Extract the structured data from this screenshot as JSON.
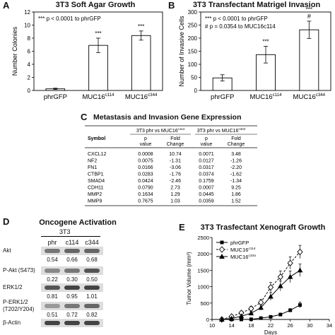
{
  "panels": {
    "a": {
      "letter": "A",
      "title": "3T3 Soft Agar Growth",
      "note": "*** p < 0.0001 to phrGFP",
      "chart_data": {
        "type": "bar",
        "categories": [
          "phrGFP",
          "MUC16c114",
          "MUC16c344"
        ],
        "category_labels": [
          {
            "main": "phrGFP",
            "sup": ""
          },
          {
            "main": "MUC16",
            "sup": "c114"
          },
          {
            "main": "MUC16",
            "sup": "c344"
          }
        ],
        "values": [
          0.25,
          6.9,
          8.4
        ],
        "errors": [
          0.1,
          1.1,
          0.7
        ],
        "annotations": [
          "",
          "***",
          "***"
        ],
        "ylabel": "Number Colonies",
        "ylim": [
          0,
          12
        ],
        "yticks": [
          "0",
          "2",
          "4",
          "6",
          "8",
          "10",
          "12"
        ]
      }
    },
    "b": {
      "letter": "B",
      "title": "3T3 Transfectant Matrigel Invasion",
      "note1": "*** p < 0.0001 to phrGFP",
      "note2": "# p = 0.0354 to MUC16c114",
      "chart_data": {
        "type": "bar",
        "categories": [
          "phrGFP",
          "MUC16c114",
          "MUC16c344"
        ],
        "category_labels": [
          {
            "main": "phrGFP",
            "sup": ""
          },
          {
            "main": "MUC16",
            "sup": "c114"
          },
          {
            "main": "MUC16",
            "sup": "c344"
          }
        ],
        "values": [
          48,
          137,
          232
        ],
        "errors": [
          12,
          32,
          33
        ],
        "annotations": [
          "",
          "***",
          "***\n#"
        ],
        "ylabel": "Number of Invasive Cells",
        "ylim": [
          0,
          300
        ],
        "yticks": [
          "0",
          "50",
          "100",
          "150",
          "200",
          "250",
          "300"
        ]
      }
    },
    "c": {
      "letter": "C",
      "title": "Metastasis and Invasion Gene Expression",
      "chart_data": {
        "type": "table",
        "group_headers": [
          "3T3 phr vs MUC16c114",
          "3T3 phr vs MUC16c344"
        ],
        "columns": [
          "Symbol",
          "p value",
          "Fold Change",
          "p value",
          "Fold Change"
        ],
        "rows": [
          [
            "CXCL12",
            "0.0008",
            "10.74",
            "0.0071",
            "3.48"
          ],
          [
            "NF2",
            "0.0075",
            "-1.31",
            "0.0127",
            "-1.26"
          ],
          [
            "FN1",
            "0.0166",
            "-3.06",
            "0.0317",
            "-2.20"
          ],
          [
            "CTBP1",
            "0.0283",
            "-1.76",
            "0.0374",
            "-1.62"
          ],
          [
            "SMAD4",
            "0.0424",
            "-2.46",
            "0.1759",
            "-1.34"
          ],
          [
            "CDH11",
            "0.0790",
            "2.73",
            "0.0007",
            "9.25"
          ],
          [
            "MMP2",
            "0.1634",
            "1.29",
            "0.0445",
            "1.86"
          ],
          [
            "MMP9",
            "0.7675",
            "1.03",
            "0.0359",
            "1.52"
          ]
        ]
      }
    },
    "d": {
      "letter": "D",
      "title": "Oncogene Activation",
      "cell_line": "3T3",
      "lanes": [
        "phr",
        "c114",
        "c344"
      ],
      "blots": [
        {
          "label": "Akt",
          "values": [
            "0.54",
            "0.66",
            "0.68"
          ]
        },
        {
          "label": "P-Akt (S473)",
          "values": [
            "0.22",
            "0.30",
            "0.50"
          ]
        },
        {
          "label": "ERK1/2",
          "values": [
            "0.81",
            "0.95",
            "1.01"
          ]
        },
        {
          "label": "P-ERK1/2\n(T202/Y204)",
          "values": [
            "0.51",
            "0.72",
            "0.82"
          ]
        },
        {
          "label": "β-Actin",
          "values": []
        }
      ]
    },
    "e": {
      "letter": "E",
      "title": "3T3 Trasfectant Xenograft Growth",
      "chart_data": {
        "type": "line",
        "xlabel": "Days",
        "ylabel": "Tumor Volume (mm³)",
        "xlim": [
          10,
          34
        ],
        "ylim": [
          0,
          2500
        ],
        "xticks": [
          "10",
          "14",
          "18",
          "22",
          "26",
          "30",
          "34"
        ],
        "yticks": [
          "0",
          "500",
          "1000",
          "1500",
          "2000",
          "2500"
        ],
        "legend_position": "top-left",
        "series": [
          {
            "name": "phrGFP",
            "legend_main": "phrGFP",
            "legend_sup": "",
            "marker": "square",
            "dash": false,
            "x": [
              12,
              14,
              16,
              18,
              20,
              22,
              24,
              26,
              28
            ],
            "y": [
              0,
              0,
              0,
              5,
              40,
              80,
              150,
              280,
              440
            ],
            "err": [
              0,
              0,
              0,
              10,
              20,
              30,
              40,
              50,
              90
            ]
          },
          {
            "name": "MUC16c114",
            "legend_main": "MUC16",
            "legend_sup": "c114",
            "marker": "diamond",
            "dash": true,
            "x": [
              12,
              14,
              16,
              18,
              20,
              22,
              24,
              26,
              28
            ],
            "y": [
              0,
              90,
              200,
              330,
              520,
              980,
              1300,
              1720,
              2060
            ],
            "err": [
              0,
              40,
              50,
              70,
              90,
              150,
              180,
              190,
              200
            ]
          },
          {
            "name": "MUC16c344",
            "legend_main": "MUC16",
            "legend_sup": "c344",
            "marker": "triangle",
            "dash": false,
            "x": [
              12,
              14,
              16,
              18,
              20,
              22,
              24,
              26,
              28
            ],
            "y": [
              0,
              30,
              100,
              190,
              360,
              700,
              1020,
              1300,
              1500
            ],
            "err": [
              0,
              20,
              40,
              60,
              80,
              120,
              150,
              180,
              190
            ]
          }
        ]
      }
    }
  }
}
